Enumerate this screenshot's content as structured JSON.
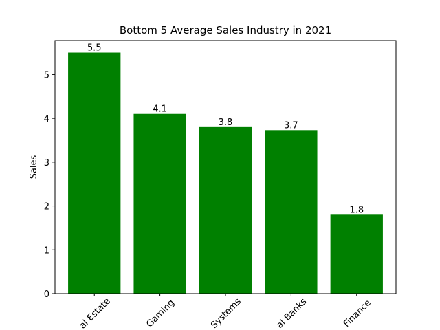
{
  "chart_data": {
    "type": "bar",
    "title": "Bottom 5 Average Sales Industry in 2021",
    "ylabel": "Sales",
    "categories": [
      "al Estate",
      "Gaming",
      "Systems",
      "al Banks",
      "Finance"
    ],
    "values": [
      5.5,
      4.1,
      3.8,
      3.73,
      1.8
    ],
    "value_labels": [
      "5.5",
      "4.1",
      "3.8",
      "3.7",
      "1.8"
    ],
    "color": "#008000",
    "ylim": [
      0,
      5.775
    ],
    "yticks": [
      0,
      1,
      2,
      3,
      4,
      5
    ],
    "grid": false
  }
}
